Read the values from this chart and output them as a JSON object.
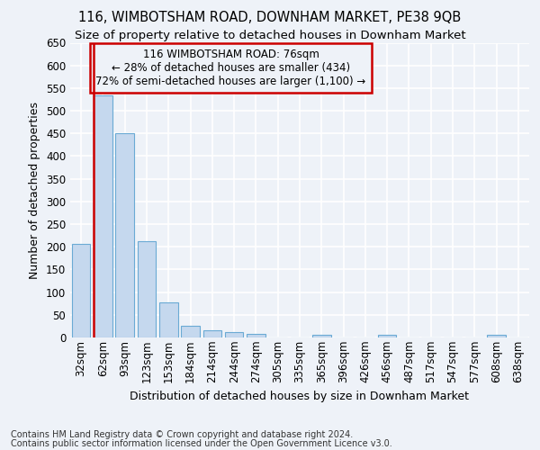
{
  "title": "116, WIMBOTSHAM ROAD, DOWNHAM MARKET, PE38 9QB",
  "subtitle": "Size of property relative to detached houses in Downham Market",
  "xlabel": "Distribution of detached houses by size in Downham Market",
  "ylabel": "Number of detached properties",
  "footer_line1": "Contains HM Land Registry data © Crown copyright and database right 2024.",
  "footer_line2": "Contains public sector information licensed under the Open Government Licence v3.0.",
  "categories": [
    "32sqm",
    "62sqm",
    "93sqm",
    "123sqm",
    "153sqm",
    "184sqm",
    "214sqm",
    "244sqm",
    "274sqm",
    "305sqm",
    "335sqm",
    "365sqm",
    "396sqm",
    "426sqm",
    "456sqm",
    "487sqm",
    "517sqm",
    "547sqm",
    "577sqm",
    "608sqm",
    "638sqm"
  ],
  "values": [
    207,
    534,
    451,
    213,
    78,
    26,
    15,
    11,
    8,
    0,
    0,
    6,
    0,
    0,
    5,
    0,
    0,
    0,
    0,
    5,
    0
  ],
  "bar_color": "#c5d8ee",
  "bar_edge_color": "#6aaad4",
  "highlight_line_bar_index": 1,
  "highlight_color": "#cc0000",
  "annotation_text_line1": "116 WIMBOTSHAM ROAD: 76sqm",
  "annotation_text_line2": "← 28% of detached houses are smaller (434)",
  "annotation_text_line3": "72% of semi-detached houses are larger (1,100) →",
  "annotation_box_color": "#cc0000",
  "ylim": [
    0,
    650
  ],
  "bg_color": "#eef2f8",
  "grid_color": "#ffffff",
  "title_fontsize": 10.5,
  "subtitle_fontsize": 9.5,
  "axis_label_fontsize": 9,
  "tick_fontsize": 8.5,
  "footer_fontsize": 7
}
